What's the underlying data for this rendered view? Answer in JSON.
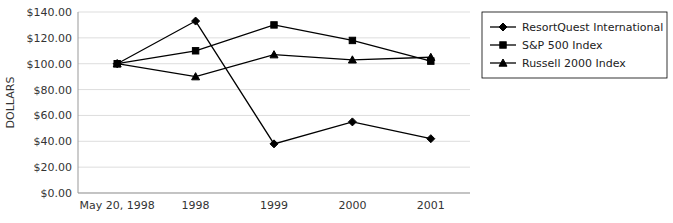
{
  "chart_data": {
    "type": "line",
    "ylabel": "DOLLARS",
    "categories": [
      "May 20, 1998",
      "1998",
      "1999",
      "2000",
      "2001"
    ],
    "series": [
      {
        "name": "ResortQuest International",
        "color": "#000000",
        "marker": "diamond",
        "values": [
          100,
          133,
          38,
          55,
          42
        ]
      },
      {
        "name": "S&P 500 Index",
        "color": "#000000",
        "marker": "square",
        "values": [
          100,
          110,
          130,
          118,
          102
        ]
      },
      {
        "name": "Russell 2000 Index",
        "color": "#000000",
        "marker": "triangle",
        "values": [
          100,
          90,
          107,
          103,
          105
        ]
      }
    ],
    "ylim": [
      0,
      140
    ],
    "yticks": [
      {
        "value": 0,
        "label": "$0.00"
      },
      {
        "value": 20,
        "label": "$20.00"
      },
      {
        "value": 40,
        "label": "$40.00"
      },
      {
        "value": 60,
        "label": "$60.00"
      },
      {
        "value": 80,
        "label": "$80.00"
      },
      {
        "value": 100,
        "label": "$100.00"
      },
      {
        "value": 120,
        "label": "$120.00"
      },
      {
        "value": 140,
        "label": "$140.00"
      }
    ],
    "grid": true,
    "legend": "right"
  }
}
